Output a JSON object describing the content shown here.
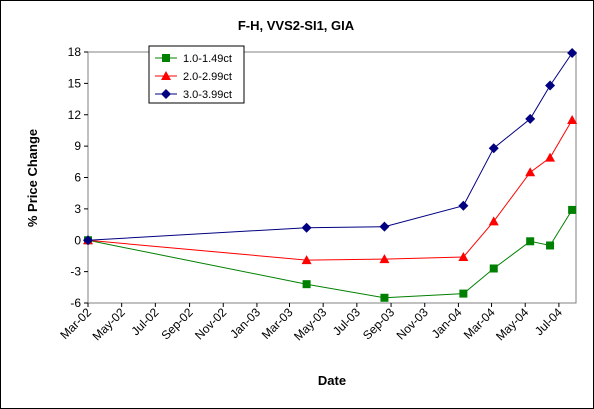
{
  "chart_data": {
    "type": "line",
    "title": "F-H, VVS2-SI1, GIA",
    "xlabel": "Date",
    "ylabel": "% Price Change",
    "ylim": [
      -6,
      18
    ],
    "y_ticks": [
      -6,
      -3,
      0,
      3,
      6,
      9,
      12,
      15,
      18
    ],
    "x_axis": {
      "start": "2002-03",
      "end": "2004-08",
      "tick_labels": [
        "Mar-02",
        "May-02",
        "Jul-02",
        "Sep-02",
        "Nov-02",
        "Jan-03",
        "Mar-03",
        "May-03",
        "Jul-03",
        "Sep-03",
        "Nov-03",
        "Jan-04",
        "Mar-04",
        "May-04",
        "Jul-04"
      ],
      "tick_dates": [
        "2002-03",
        "2002-05",
        "2002-07",
        "2002-09",
        "2002-11",
        "2003-01",
        "2003-03",
        "2003-05",
        "2003-07",
        "2003-09",
        "2003-11",
        "2004-01",
        "2004-03",
        "2004-05",
        "2004-07"
      ]
    },
    "grid": false,
    "legend_position": "top-left",
    "series": [
      {
        "name": "1.0-1.49ct",
        "color": "#008000",
        "marker": "square",
        "x": [
          "2002-03-01",
          "2003-04-01",
          "2003-08-20",
          "2004-01-10",
          "2004-03-05",
          "2004-05-10",
          "2004-06-15",
          "2004-07-25"
        ],
        "values": [
          0,
          -4.2,
          -5.5,
          -5.1,
          -2.7,
          -0.1,
          -0.5,
          2.9
        ]
      },
      {
        "name": "2.0-2.99ct",
        "color": "#ff0000",
        "marker": "triangle",
        "x": [
          "2002-03-01",
          "2003-04-01",
          "2003-08-20",
          "2004-01-10",
          "2004-03-05",
          "2004-05-10",
          "2004-06-15",
          "2004-07-25"
        ],
        "values": [
          0,
          -1.9,
          -1.8,
          -1.6,
          1.8,
          6.5,
          7.9,
          11.5
        ]
      },
      {
        "name": "3.0-3.99ct",
        "color": "#000080",
        "marker": "diamond",
        "x": [
          "2002-03-01",
          "2003-04-01",
          "2003-08-20",
          "2004-01-10",
          "2004-03-05",
          "2004-05-10",
          "2004-06-15",
          "2004-07-25"
        ],
        "values": [
          0,
          1.2,
          1.3,
          3.3,
          8.8,
          11.6,
          14.8,
          17.9
        ]
      }
    ]
  }
}
